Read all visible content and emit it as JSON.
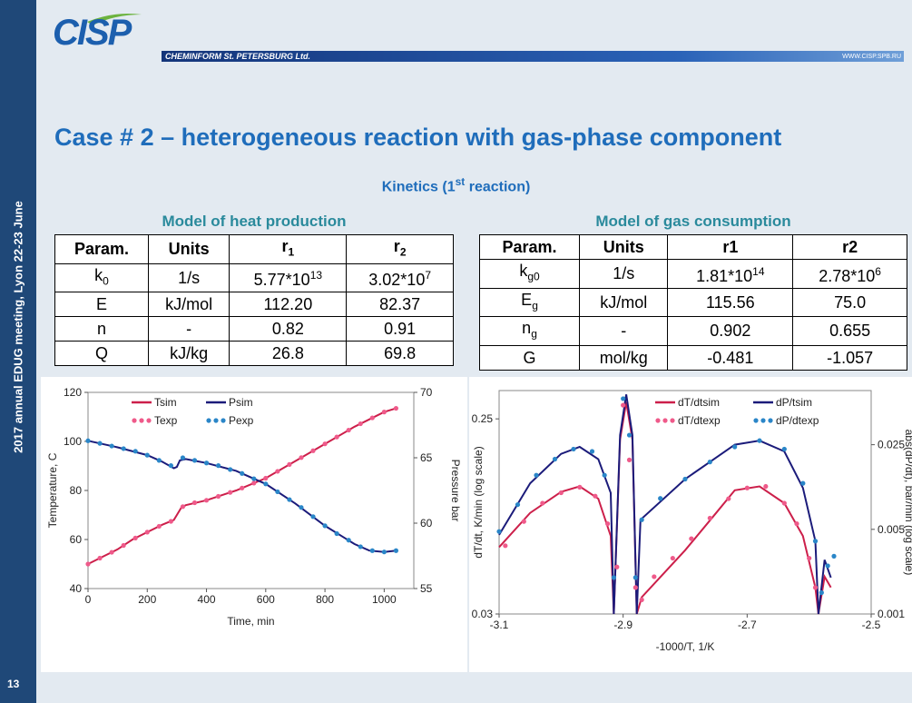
{
  "header": {
    "logo": "CISP",
    "company": "CHEMINFORM St. PETERSBURG Ltd.",
    "url": "WWW.CISP.SPB.RU"
  },
  "sidebar": {
    "event": "2017 annual EDUG meeting, Lyon 22-23 June",
    "page": "13"
  },
  "title": "Case # 2 – heterogeneous reaction with gas-phase component",
  "subtitle": {
    "text": "Kinetics (1",
    "sup": "st",
    "after": " reaction)"
  },
  "tables": [
    {
      "caption": "Model of heat production",
      "header": [
        "Param.",
        "Units",
        {
          "text": "r",
          "sub": "1"
        },
        {
          "text": "r",
          "sub": "2"
        }
      ],
      "rows": [
        [
          {
            "text": "k",
            "sub": "0"
          },
          "1/s",
          {
            "text": "5.77*10",
            "sup": "13"
          },
          {
            "text": "3.02*10",
            "sup": "7"
          }
        ],
        [
          "E",
          "kJ/mol",
          "112.20",
          "82.37"
        ],
        [
          "n",
          "-",
          "0.82",
          "0.91"
        ],
        [
          "Q",
          "kJ/kg",
          "26.8",
          "69.8"
        ]
      ]
    },
    {
      "caption": "Model of gas consumption",
      "header": [
        "Param.",
        "Units",
        "r1",
        "r2"
      ],
      "rows": [
        [
          {
            "text": "k",
            "sub": "g0"
          },
          "1/s",
          {
            "text": "1.81*10",
            "sup": "14"
          },
          {
            "text": "2.78*10",
            "sup": "6"
          }
        ],
        [
          {
            "text": "E",
            "sub": "g"
          },
          "kJ/mol",
          "115.56",
          "75.0"
        ],
        [
          {
            "text": "n",
            "sub": "g"
          },
          "-",
          "0.902",
          "0.655"
        ],
        [
          "G",
          "mol/kg",
          "-0.481",
          "-1.057"
        ]
      ]
    }
  ],
  "chart_data": [
    {
      "type": "line",
      "xlabel": "Time, min",
      "ylabel": "Temperature, C",
      "y2label": "Pressure bar",
      "xlim": [
        0,
        1100
      ],
      "xticks": [
        0,
        200,
        400,
        600,
        800,
        1000
      ],
      "ylim": [
        40,
        120
      ],
      "yticks": [
        40,
        60,
        80,
        100,
        120
      ],
      "y2lim": [
        55,
        70
      ],
      "y2ticks": [
        55,
        60,
        65,
        70
      ],
      "legend": "upper left",
      "series": [
        {
          "name": "Tsim",
          "color": "#cc1f4a",
          "style": "line",
          "x": [
            0,
            50,
            100,
            150,
            200,
            250,
            290,
            300,
            315,
            330,
            400,
            500,
            600,
            700,
            800,
            900,
            1000,
            1040
          ],
          "values": [
            50,
            53,
            56,
            60,
            63,
            66,
            68,
            70,
            73,
            74,
            76,
            80,
            85,
            92,
            99,
            106,
            112,
            113.5
          ]
        },
        {
          "name": "Psim",
          "color": "#1b1b7a",
          "style": "line",
          "axis": "y2",
          "x": [
            0,
            100,
            200,
            250,
            290,
            300,
            310,
            330,
            400,
            500,
            600,
            700,
            800,
            900,
            950,
            1000,
            1040
          ],
          "values": [
            66.3,
            65.8,
            65.2,
            64.7,
            64.2,
            64.3,
            64.8,
            64.9,
            64.6,
            64.0,
            63.0,
            61.5,
            59.8,
            58.4,
            57.9,
            57.8,
            57.9
          ]
        },
        {
          "name": "Texp",
          "color": "#ef5a8a",
          "style": "dots",
          "x": [
            0,
            40,
            80,
            120,
            160,
            200,
            240,
            280,
            320,
            360,
            400,
            440,
            480,
            520,
            560,
            600,
            640,
            680,
            720,
            760,
            800,
            840,
            880,
            920,
            960,
            1000,
            1040
          ],
          "values": [
            50,
            52.4,
            54.8,
            57.6,
            60.6,
            63,
            65.4,
            67.4,
            73.4,
            75,
            76,
            77.6,
            79.2,
            81,
            83,
            85,
            87.8,
            90.6,
            93.4,
            96.2,
            99,
            101.8,
            104.6,
            107.2,
            109.6,
            112,
            113.5
          ]
        },
        {
          "name": "Pexp",
          "color": "#2a86c8",
          "style": "dots",
          "axis": "y2",
          "x": [
            0,
            40,
            80,
            120,
            160,
            200,
            240,
            280,
            320,
            360,
            400,
            440,
            480,
            520,
            560,
            600,
            640,
            680,
            720,
            760,
            800,
            840,
            880,
            920,
            960,
            1000,
            1040
          ],
          "values": [
            66.3,
            66.1,
            65.9,
            65.7,
            65.5,
            65.2,
            64.8,
            64.4,
            65.0,
            64.8,
            64.6,
            64.4,
            64.1,
            63.8,
            63.4,
            63.0,
            62.4,
            61.8,
            61.2,
            60.5,
            59.8,
            59.2,
            58.7,
            58.2,
            57.9,
            57.8,
            57.9
          ]
        }
      ]
    },
    {
      "type": "line",
      "xlabel": "-1000/T, 1/K",
      "ylabel": "dT/dt, K/min (log scale)",
      "y2label": "abs(dP/dt), bar/min (log scale)",
      "xlim": [
        -3.1,
        -2.5
      ],
      "xticks": [
        -3.1,
        -2.9,
        -2.7,
        -2.5
      ],
      "ylim": [
        0.03,
        0.34
      ],
      "yticks": [
        0.03,
        0.25
      ],
      "ylog": true,
      "y2lim": [
        0.001,
        0.07
      ],
      "y2ticks": [
        0.001,
        0.005,
        0.025
      ],
      "y2log": true,
      "legend": "upper right",
      "series": [
        {
          "name": "dT/dtsim",
          "color": "#cc1f4a",
          "style": "line",
          "x": [
            -3.1,
            -3.05,
            -3.0,
            -2.97,
            -2.94,
            -2.92,
            -2.915,
            -2.905,
            -2.895,
            -2.885,
            -2.878,
            -2.87,
            -2.8,
            -2.75,
            -2.72,
            -2.68,
            -2.64,
            -2.61,
            -2.59,
            -2.585,
            -2.575,
            -2.565
          ],
          "values": [
            0.062,
            0.09,
            0.113,
            0.12,
            0.105,
            0.07,
            0.03,
            0.2,
            0.3,
            0.2,
            0.03,
            0.036,
            0.06,
            0.09,
            0.115,
            0.12,
            0.1,
            0.07,
            0.04,
            0.03,
            0.045,
            0.04
          ]
        },
        {
          "name": "dP/tsim",
          "color": "#1b1b7a",
          "style": "line",
          "axis": "y2",
          "x": [
            -3.1,
            -3.05,
            -3.0,
            -2.97,
            -2.94,
            -2.92,
            -2.915,
            -2.905,
            -2.895,
            -2.885,
            -2.878,
            -2.872,
            -2.8,
            -2.72,
            -2.68,
            -2.64,
            -2.61,
            -2.59,
            -2.585,
            -2.575,
            -2.565
          ],
          "values": [
            0.0045,
            0.012,
            0.021,
            0.024,
            0.019,
            0.01,
            0.001,
            0.03,
            0.065,
            0.03,
            0.001,
            0.006,
            0.013,
            0.025,
            0.027,
            0.022,
            0.011,
            0.004,
            0.001,
            0.0028,
            0.002
          ]
        },
        {
          "name": "dT/dtexp",
          "color": "#ef5a8a",
          "style": "dots",
          "x": [
            -3.09,
            -3.06,
            -3.03,
            -3.0,
            -2.97,
            -2.945,
            -2.925,
            -2.91,
            -2.9,
            -2.89,
            -2.88,
            -2.87,
            -2.85,
            -2.82,
            -2.79,
            -2.76,
            -2.73,
            -2.7,
            -2.67,
            -2.64,
            -2.62,
            -2.6,
            -2.59
          ],
          "values": [
            0.063,
            0.082,
            0.1,
            0.112,
            0.119,
            0.108,
            0.08,
            0.05,
            0.29,
            0.16,
            0.04,
            0.035,
            0.045,
            0.055,
            0.068,
            0.085,
            0.105,
            0.118,
            0.12,
            0.1,
            0.08,
            0.055,
            0.04
          ]
        },
        {
          "name": "dP/dtexp",
          "color": "#2a86c8",
          "style": "dots",
          "axis": "y2",
          "x": [
            -3.1,
            -3.07,
            -3.04,
            -3.01,
            -2.98,
            -2.95,
            -2.93,
            -2.915,
            -2.9,
            -2.89,
            -2.88,
            -2.87,
            -2.84,
            -2.8,
            -2.76,
            -2.72,
            -2.68,
            -2.64,
            -2.61,
            -2.59,
            -2.58,
            -2.57,
            -2.56
          ],
          "values": [
            0.0048,
            0.008,
            0.014,
            0.019,
            0.023,
            0.022,
            0.014,
            0.002,
            0.06,
            0.03,
            0.002,
            0.006,
            0.009,
            0.013,
            0.018,
            0.024,
            0.027,
            0.023,
            0.012,
            0.004,
            0.0015,
            0.0025,
            0.003
          ]
        }
      ]
    }
  ]
}
